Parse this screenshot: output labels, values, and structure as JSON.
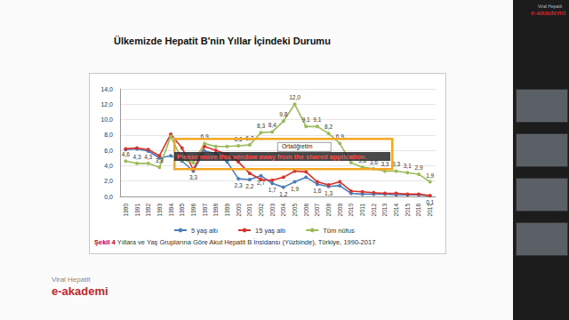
{
  "slide": {
    "title": "Ülkemizde Hepatit B'nin Yıllar İçindeki Durumu",
    "caption_label": "Şekil 4",
    "caption": "Yıllara ve Yaş Gruplarına Göre Akut Hepatit B İnsidansı (Yüzbinde), Türkiye, 1990-2017",
    "logo": [
      "Viral Hepatit",
      "e-akademi"
    ],
    "overlay": "Please move this window away from the shared application."
  },
  "chart_data": {
    "type": "line",
    "annotations": [
      "Ortaöğretim"
    ],
    "categories": [
      "1990",
      "1991",
      "1992",
      "1993",
      "1994",
      "1995",
      "1996",
      "1997",
      "1998",
      "1999",
      "2000",
      "2001",
      "2002",
      "2003",
      "2004",
      "2005",
      "2006",
      "2007",
      "2008",
      "2009",
      "2010",
      "2011",
      "2012",
      "2013",
      "2014",
      "2015",
      "2016",
      "2017"
    ],
    "series": [
      {
        "name": "5 yaş altı",
        "color": "#4a7ebb",
        "marker": "circle",
        "line_style": "solid",
        "values": [
          6.1,
          6.2,
          5.9,
          5.0,
          5.3,
          4.6,
          3.3,
          5.9,
          5.6,
          4.5,
          2.3,
          2.2,
          2.7,
          1.7,
          1.2,
          1.9,
          2.5,
          1.6,
          1.3,
          1.4,
          0.4,
          0.3,
          0.3,
          0.3,
          0.2,
          0.2,
          0.2,
          0.1
        ],
        "value_labels": [
          null,
          null,
          null,
          null,
          null,
          null,
          "3,3",
          null,
          null,
          null,
          "2,3",
          "2,2",
          "2,7",
          "1,7",
          "1,2",
          "1,9",
          null,
          "1,6",
          "1,3",
          null,
          null,
          null,
          null,
          null,
          null,
          null,
          null,
          "0,1"
        ]
      },
      {
        "name": "15 yaş altı",
        "color": "#d9312b",
        "marker": "circle",
        "line_style": "solid",
        "values": [
          6.2,
          6.3,
          6.1,
          5.3,
          8.1,
          6.3,
          3.5,
          6.5,
          6.0,
          5.5,
          4.5,
          3.0,
          2.2,
          2.1,
          2.5,
          3.3,
          3.2,
          1.9,
          1.5,
          1.9,
          0.7,
          0.6,
          0.5,
          0.4,
          0.4,
          0.3,
          0.3,
          0.1
        ],
        "value_labels": [
          null,
          null,
          null,
          null,
          null,
          null,
          null,
          null,
          null,
          null,
          null,
          null,
          null,
          null,
          null,
          null,
          null,
          null,
          null,
          null,
          null,
          null,
          null,
          null,
          null,
          null,
          null,
          null
        ]
      },
      {
        "name": "Tüm nüfus",
        "color": "#9bbb59",
        "marker": "circle",
        "line_style": "solid",
        "values": [
          4.6,
          4.3,
          4.3,
          3.8,
          7.8,
          4.8,
          4.4,
          6.9,
          6.5,
          6.5,
          6.6,
          6.7,
          8.3,
          8.4,
          9.8,
          12.0,
          9.1,
          9.1,
          8.2,
          6.9,
          4.4,
          3.8,
          3.6,
          3.3,
          3.3,
          3.1,
          2.9,
          1.9
        ],
        "value_labels": [
          "4,6",
          "4,3",
          "4,3",
          "3,8",
          null,
          null,
          null,
          "6,9",
          null,
          null,
          "6,6",
          "6,7",
          "8,3",
          "8,4",
          "9,8",
          "12,0",
          "9,1",
          "9,1",
          "8,2",
          "6,9",
          null,
          "3,8",
          "3,6",
          "3,3",
          "3,3",
          "3,1",
          "2,9",
          "1,9"
        ]
      }
    ],
    "ylim": [
      0,
      14
    ],
    "yticks": [
      {
        "value": 0,
        "label": "0,0"
      },
      {
        "value": 2,
        "label": "2,0"
      },
      {
        "value": 4,
        "label": "4,0"
      },
      {
        "value": 6,
        "label": "6,0"
      },
      {
        "value": 8,
        "label": "8,0"
      },
      {
        "value": 10,
        "label": "10,0"
      },
      {
        "value": 12,
        "label": "12,0"
      },
      {
        "value": 14,
        "label": "14,0"
      }
    ],
    "grid": true,
    "data_labels": true,
    "legend": "bottom"
  }
}
